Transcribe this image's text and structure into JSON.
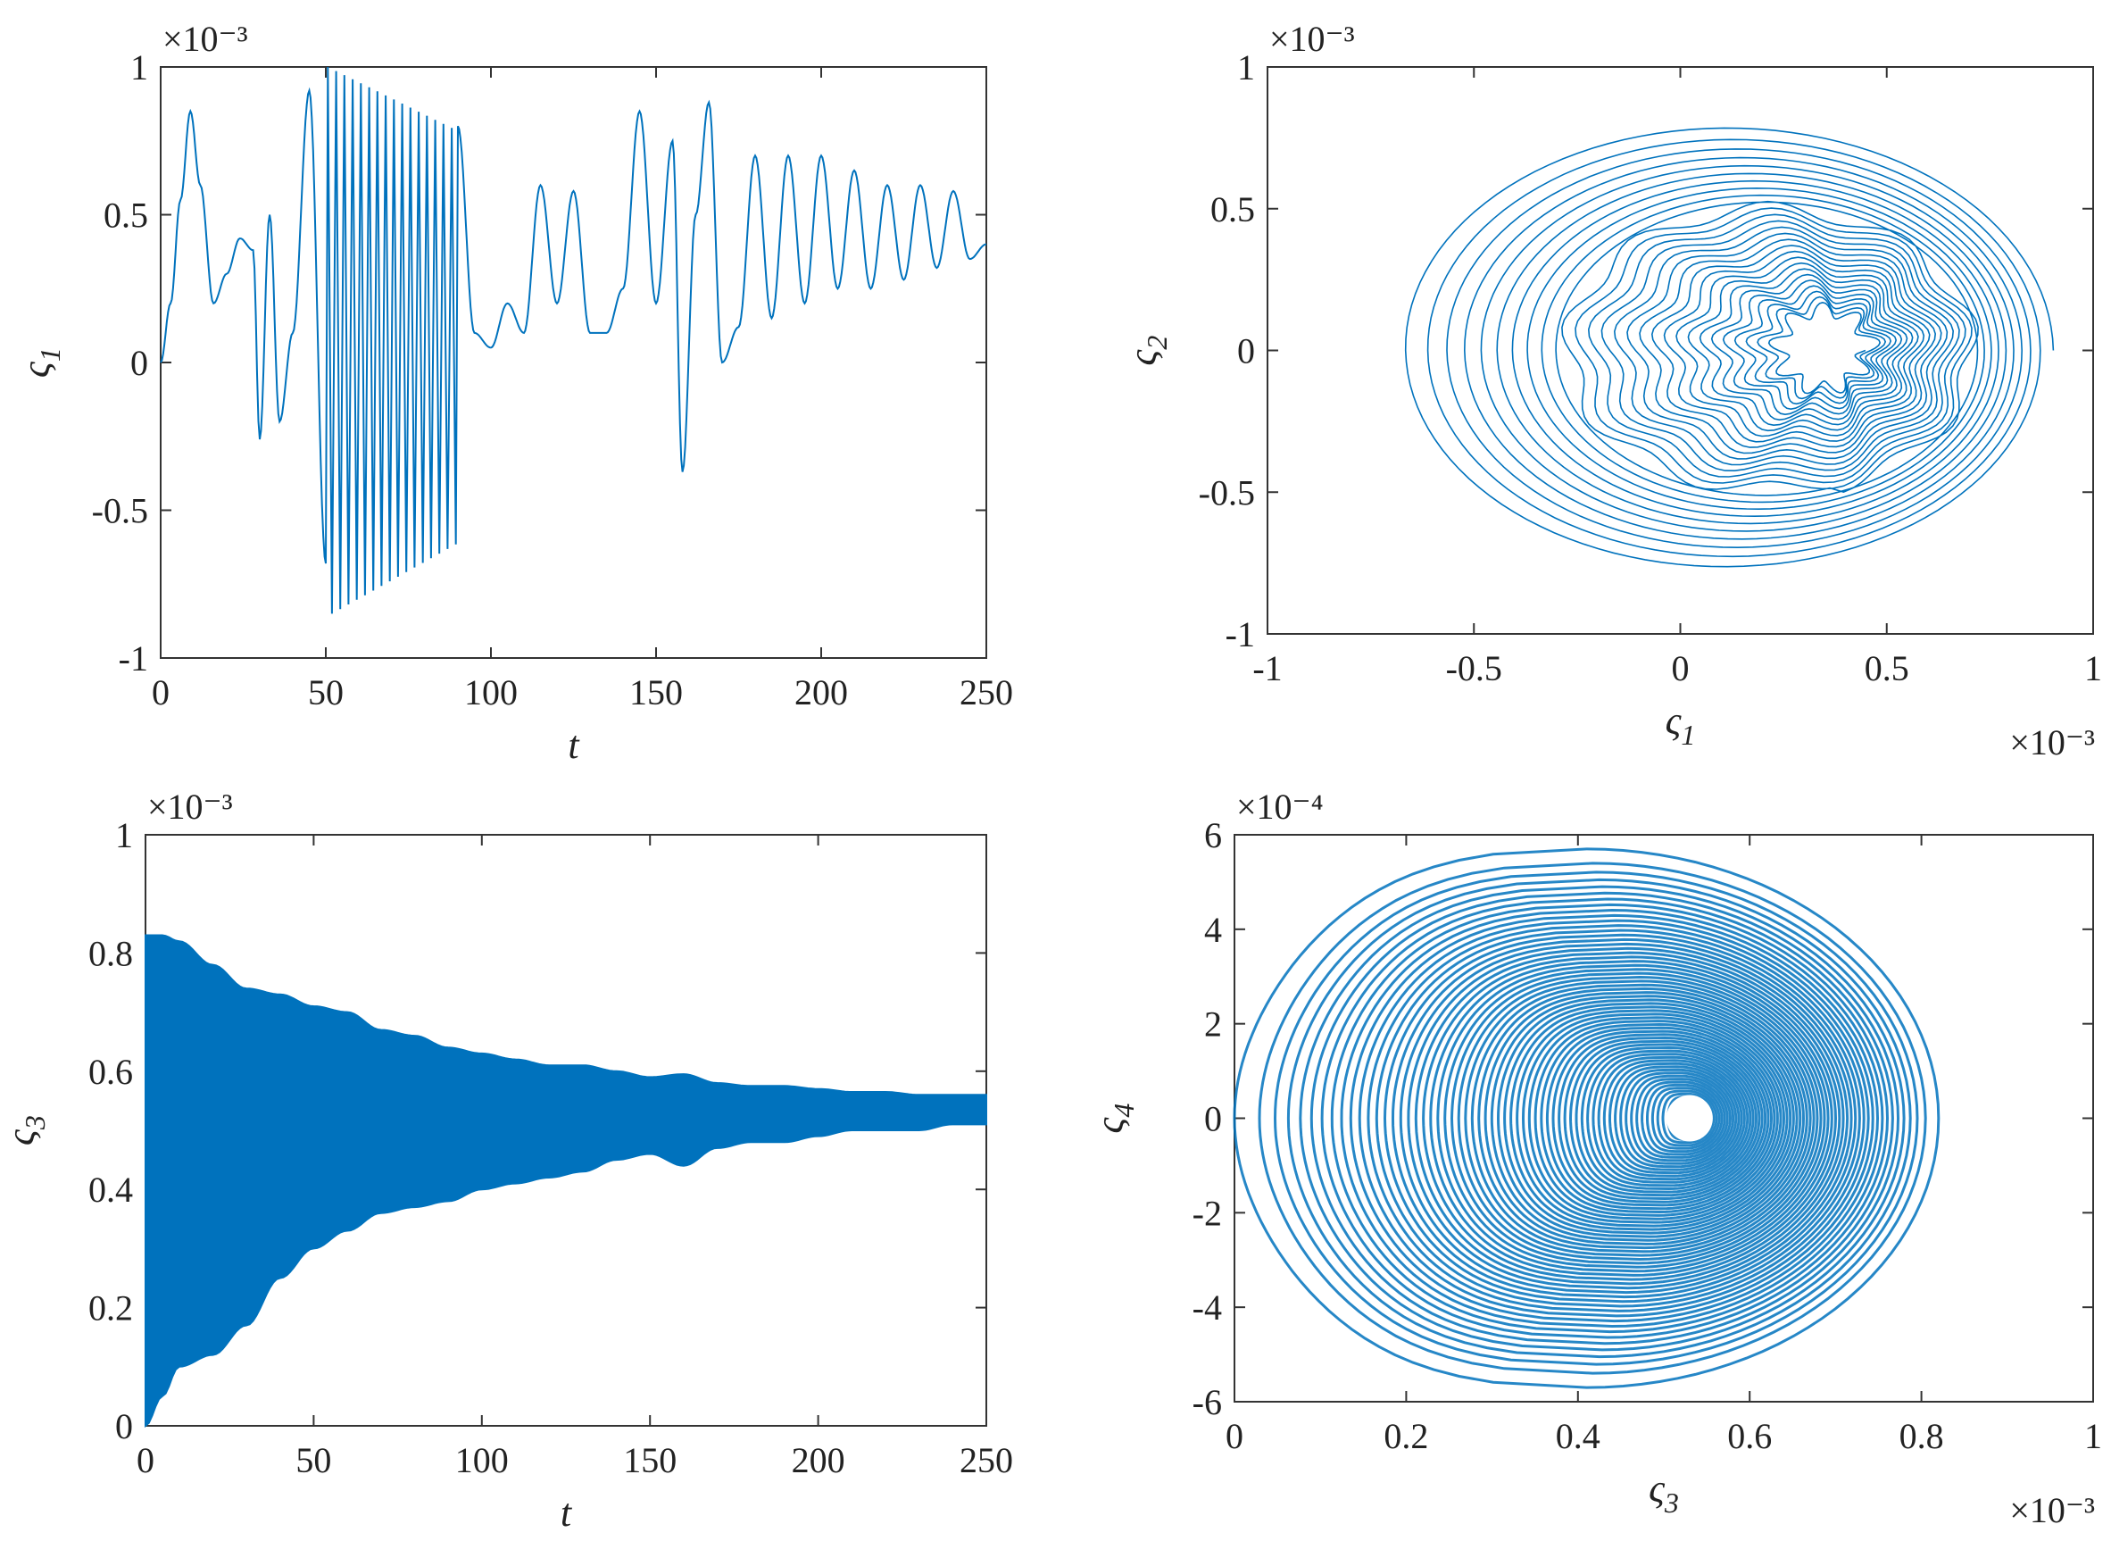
{
  "colors": {
    "series": "#0072BD",
    "axes": "#333333",
    "background": "#ffffff"
  },
  "chart_data": [
    {
      "id": "ts1",
      "type": "line",
      "xlabel": "t",
      "ylabel": {
        "base": "ς",
        "sub": "1"
      },
      "xlim": [
        0,
        250
      ],
      "ylim": [
        -1,
        1
      ],
      "xticks": [
        "0",
        "50",
        "100",
        "150",
        "200",
        "250"
      ],
      "yticks": [
        "-1",
        "-0.5",
        "0",
        "0.5",
        "1"
      ],
      "y_multiplier": "×10⁻³",
      "grid": false,
      "series": [
        {
          "x": [
            0,
            3,
            6,
            9,
            12,
            16,
            20,
            24,
            28,
            30,
            33,
            36,
            40,
            45,
            50
          ],
          "y": [
            0,
            0.2,
            0.55,
            0.85,
            0.6,
            0.2,
            0.3,
            0.42,
            0.38,
            -0.26,
            0.5,
            -0.2,
            0.1,
            0.92,
            -0.68
          ]
        }
      ],
      "burst": {
        "x_start": 50,
        "x_end": 90,
        "cycles": 16,
        "top_start": 1.0,
        "top_end": 0.78,
        "bottom_start": -0.85,
        "bottom_end": -0.6
      },
      "tail": {
        "x": [
          90,
          95,
          100,
          105,
          110,
          115,
          120,
          125,
          130,
          135,
          140,
          145,
          150,
          155,
          158,
          162,
          166,
          170,
          175,
          180,
          185,
          190,
          195,
          200,
          205,
          210,
          215,
          220,
          225,
          230,
          235,
          240,
          245,
          250
        ],
        "y": [
          0.8,
          0.1,
          0.05,
          0.2,
          0.1,
          0.6,
          0.2,
          0.58,
          0.1,
          0.1,
          0.25,
          0.85,
          0.2,
          0.75,
          -0.37,
          0.5,
          0.88,
          0.0,
          0.12,
          0.7,
          0.15,
          0.7,
          0.2,
          0.7,
          0.25,
          0.65,
          0.25,
          0.6,
          0.28,
          0.6,
          0.32,
          0.58,
          0.35,
          0.4
        ]
      }
    },
    {
      "id": "phase12",
      "type": "line",
      "xlabel": {
        "base": "ς",
        "sub": "1"
      },
      "ylabel": {
        "base": "ς",
        "sub": "2"
      },
      "xlim": [
        -1,
        1
      ],
      "ylim": [
        -1,
        1
      ],
      "xticks": [
        "-1",
        "-0.5",
        "0",
        "0.5",
        "1"
      ],
      "yticks": [
        "-1",
        "-0.5",
        "0",
        "0.5",
        "1"
      ],
      "x_multiplier": "×10⁻³",
      "y_multiplier": "×10⁻³",
      "grid": false,
      "spiral": {
        "center_start": [
          0.1,
          0.0
        ],
        "center_end": [
          0.35,
          0.0
        ],
        "rx_start": 0.98,
        "rx_end": 0.12,
        "ry_start": 0.93,
        "ry_end": 0.15,
        "loops": 28
      }
    },
    {
      "id": "ts3",
      "type": "area",
      "xlabel": "t",
      "ylabel": {
        "base": "ς",
        "sub": "3"
      },
      "xlim": [
        0,
        250
      ],
      "ylim": [
        0,
        1
      ],
      "xticks": [
        "0",
        "50",
        "100",
        "150",
        "200",
        "250"
      ],
      "yticks": [
        "0",
        "0.2",
        "0.4",
        "0.6",
        "0.8",
        "1"
      ],
      "y_multiplier": "×10⁻³",
      "grid": false,
      "upper": {
        "x": [
          0,
          5,
          10,
          20,
          30,
          40,
          50,
          60,
          70,
          80,
          90,
          100,
          110,
          120,
          130,
          140,
          150,
          160,
          170,
          180,
          190,
          200,
          210,
          220,
          230,
          240,
          250
        ],
        "y": [
          0.83,
          0.83,
          0.82,
          0.78,
          0.74,
          0.73,
          0.71,
          0.7,
          0.67,
          0.66,
          0.64,
          0.63,
          0.62,
          0.61,
          0.61,
          0.6,
          0.59,
          0.595,
          0.58,
          0.575,
          0.575,
          0.57,
          0.565,
          0.565,
          0.56,
          0.56,
          0.56
        ]
      },
      "lower": {
        "x": [
          0,
          5,
          10,
          20,
          30,
          40,
          50,
          60,
          70,
          80,
          90,
          100,
          110,
          120,
          130,
          140,
          150,
          160,
          170,
          180,
          190,
          200,
          210,
          220,
          230,
          240,
          250
        ],
        "y": [
          0.0,
          0.05,
          0.1,
          0.12,
          0.17,
          0.25,
          0.3,
          0.33,
          0.36,
          0.37,
          0.38,
          0.4,
          0.41,
          0.42,
          0.43,
          0.45,
          0.46,
          0.44,
          0.47,
          0.48,
          0.48,
          0.49,
          0.5,
          0.5,
          0.5,
          0.51,
          0.51
        ]
      }
    },
    {
      "id": "phase34",
      "type": "line",
      "xlabel": {
        "base": "ς",
        "sub": "3"
      },
      "ylabel": {
        "base": "ς",
        "sub": "4"
      },
      "xlim": [
        0,
        1
      ],
      "ylim": [
        -6,
        6
      ],
      "xticks": [
        "0",
        "0.2",
        "0.4",
        "0.6",
        "0.8",
        "1"
      ],
      "yticks": [
        "-6",
        "-4",
        "-2",
        "0",
        "2",
        "4",
        "6"
      ],
      "x_multiplier": "×10⁻³",
      "y_multiplier": "×10⁻⁴",
      "grid": false,
      "spiral": {
        "center": [
          0.53,
          0.0
        ],
        "x_left_start": 0.0,
        "x_right_start": 0.82,
        "y_amp_start": 5.7,
        "inner_rx": 0.025,
        "inner_ry": 0.45,
        "loops": 60
      }
    }
  ]
}
